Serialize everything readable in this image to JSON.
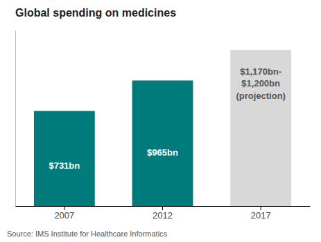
{
  "chart_data": {
    "type": "bar",
    "title": "Global spending on medicines",
    "categories": [
      "2007",
      "2012",
      "2017"
    ],
    "values": [
      731,
      965,
      1200
    ],
    "colors": [
      "#007B7B",
      "#007B7B",
      "#d8d8d8"
    ],
    "data_labels": true,
    "value_labels": [
      "$731bn",
      "$965bn",
      "$1,170bn-\n$1,200bn\n(projection)"
    ],
    "ylim": [
      0,
      1350
    ],
    "tick_labels": "x",
    "source": "Source: IMS Institute for Healthcare Informatics"
  }
}
